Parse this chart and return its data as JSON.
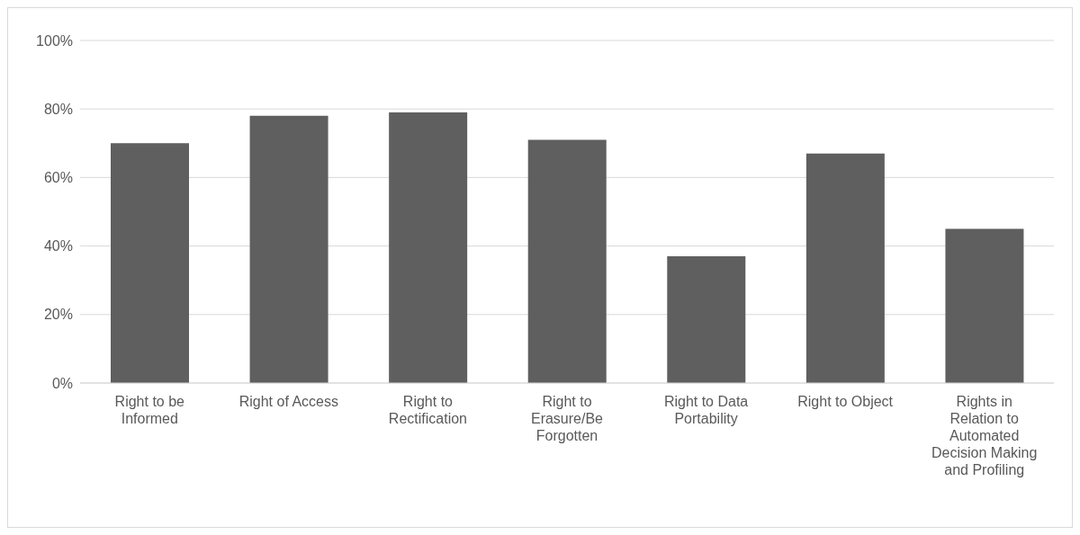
{
  "chart_data": {
    "type": "bar",
    "categories": [
      "Right to be Informed",
      "Right of Access",
      "Right to Rectification",
      "Right to Erasure/Be Forgotten",
      "Right to Data Portability",
      "Right to Object",
      "Rights in Relation to Automated Decision Making and Profiling"
    ],
    "values": [
      70,
      78,
      79,
      71,
      37,
      67,
      45
    ],
    "color": "#5f5f5f",
    "ylim": [
      0,
      100
    ],
    "yticks": [
      {
        "value": 0,
        "label": "0%"
      },
      {
        "value": 20,
        "label": "20%"
      },
      {
        "value": 40,
        "label": "40%"
      },
      {
        "value": 60,
        "label": "60%"
      },
      {
        "value": 80,
        "label": "80%"
      },
      {
        "value": 100,
        "label": "100%"
      }
    ],
    "grid": "y",
    "legend": false
  }
}
